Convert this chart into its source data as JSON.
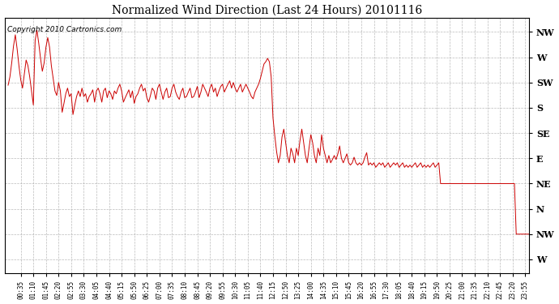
{
  "title": "Normalized Wind Direction (Last 24 Hours) 20101116",
  "copyright_text": "Copyright 2010 Cartronics.com",
  "line_color": "#cc0000",
  "bg_color": "#ffffff",
  "grid_color": "#aaaaaa",
  "ytick_labels": [
    "NW",
    "W",
    "SW",
    "S",
    "SE",
    "E",
    "NE",
    "N",
    "NW",
    "W"
  ],
  "ytick_values": [
    315,
    270,
    225,
    180,
    135,
    90,
    45,
    0,
    -45,
    -90
  ],
  "ylim": [
    -115,
    340
  ],
  "xtick_labels": [
    "00:35",
    "01:10",
    "01:45",
    "02:20",
    "02:55",
    "03:30",
    "04:05",
    "04:40",
    "05:15",
    "05:50",
    "06:25",
    "07:00",
    "07:35",
    "08:10",
    "08:45",
    "09:20",
    "09:55",
    "10:30",
    "11:05",
    "11:40",
    "12:15",
    "12:50",
    "13:25",
    "14:00",
    "14:35",
    "15:10",
    "15:45",
    "16:20",
    "16:55",
    "17:30",
    "18:05",
    "18:40",
    "19:15",
    "19:50",
    "20:25",
    "21:00",
    "21:35",
    "22:10",
    "22:45",
    "23:20",
    "23:55"
  ],
  "wind_values": [
    220,
    235,
    260,
    290,
    310,
    285,
    255,
    230,
    215,
    240,
    265,
    255,
    235,
    210,
    185,
    300,
    318,
    295,
    268,
    245,
    260,
    288,
    305,
    288,
    255,
    232,
    210,
    202,
    225,
    210,
    172,
    188,
    205,
    215,
    200,
    205,
    168,
    185,
    200,
    210,
    200,
    215,
    200,
    205,
    190,
    200,
    205,
    212,
    190,
    210,
    215,
    205,
    190,
    210,
    215,
    198,
    210,
    205,
    195,
    210,
    205,
    215,
    222,
    210,
    190,
    198,
    205,
    212,
    198,
    210,
    188,
    200,
    205,
    215,
    222,
    210,
    215,
    198,
    190,
    202,
    215,
    210,
    195,
    215,
    222,
    208,
    195,
    208,
    215,
    198,
    200,
    215,
    222,
    208,
    200,
    195,
    208,
    215,
    198,
    200,
    208,
    215,
    198,
    200,
    208,
    218,
    198,
    208,
    222,
    215,
    208,
    200,
    215,
    222,
    208,
    215,
    200,
    210,
    218,
    222,
    208,
    215,
    222,
    228,
    215,
    225,
    215,
    208,
    215,
    222,
    208,
    215,
    222,
    215,
    208,
    200,
    196,
    208,
    215,
    222,
    232,
    245,
    258,
    262,
    268,
    262,
    235,
    162,
    130,
    102,
    82,
    95,
    128,
    142,
    118,
    95,
    82,
    108,
    98,
    82,
    108,
    95,
    122,
    142,
    118,
    95,
    82,
    108,
    132,
    118,
    95,
    82,
    108,
    95,
    132,
    108,
    95,
    82,
    95,
    82,
    88,
    95,
    88,
    98,
    112,
    90,
    82,
    90,
    98,
    82,
    78,
    82,
    92,
    82,
    78,
    82,
    78,
    82,
    92,
    100,
    78,
    82,
    78,
    82,
    74,
    78,
    82,
    78,
    82,
    74,
    78,
    82,
    74,
    78,
    82,
    78,
    82,
    74,
    78,
    82,
    74,
    78,
    74,
    78,
    74,
    78,
    82,
    74,
    78,
    82,
    74,
    78,
    74,
    78,
    74,
    78,
    82,
    74,
    78,
    82,
    45,
    45,
    45,
    45,
    45,
    45,
    45,
    45,
    45,
    45,
    45,
    45,
    45,
    45,
    45,
    45,
    45,
    45,
    45,
    45,
    45,
    45,
    45,
    45,
    45,
    45,
    45,
    45,
    45,
    45,
    45,
    45,
    45,
    45,
    45,
    45,
    45,
    45,
    45,
    45,
    45,
    45,
    -45,
    -45,
    -45,
    -45,
    -45,
    -45,
    -45,
    -45,
    -45,
    -45,
    -45,
    -45,
    -45,
    -45,
    -45,
    -45,
    -45,
    -45,
    -78,
    -78,
    -78,
    -78,
    -78,
    -78,
    -78,
    -90
  ]
}
